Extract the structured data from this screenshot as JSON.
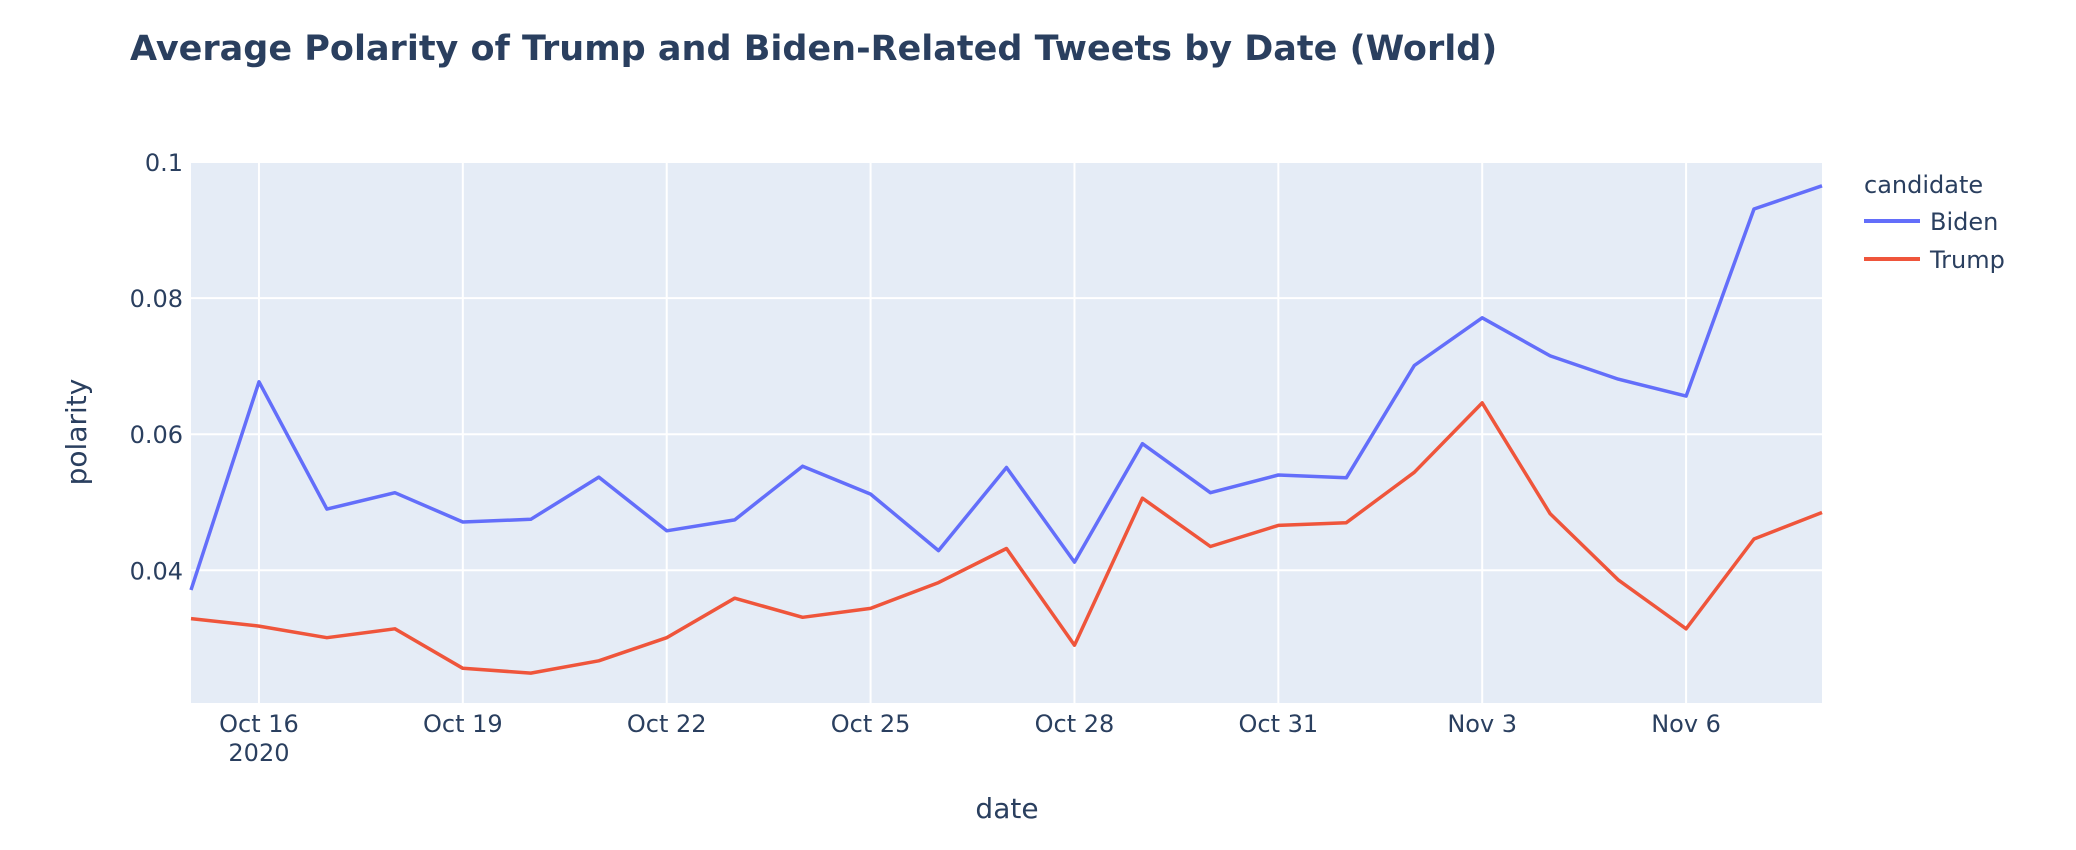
{
  "chart_data": {
    "type": "line",
    "title": "Average Polarity of Trump and Biden-Related Tweets by Date (World)",
    "xlabel": "date",
    "ylabel": "polarity",
    "legend_title": "candidate",
    "legend_position": "top-right",
    "grid": true,
    "x": [
      "2020-10-15",
      "2020-10-16",
      "2020-10-17",
      "2020-10-18",
      "2020-10-19",
      "2020-10-20",
      "2020-10-21",
      "2020-10-22",
      "2020-10-23",
      "2020-10-24",
      "2020-10-25",
      "2020-10-26",
      "2020-10-27",
      "2020-10-28",
      "2020-10-29",
      "2020-10-30",
      "2020-10-31",
      "2020-11-01",
      "2020-11-02",
      "2020-11-03",
      "2020-11-04",
      "2020-11-05",
      "2020-11-06",
      "2020-11-07",
      "2020-11-08"
    ],
    "x_ticks": [
      {
        "date": "2020-10-16",
        "label": "Oct 16",
        "sublabel": "2020"
      },
      {
        "date": "2020-10-19",
        "label": "Oct 19",
        "sublabel": ""
      },
      {
        "date": "2020-10-22",
        "label": "Oct 22",
        "sublabel": ""
      },
      {
        "date": "2020-10-25",
        "label": "Oct 25",
        "sublabel": ""
      },
      {
        "date": "2020-10-28",
        "label": "Oct 28",
        "sublabel": ""
      },
      {
        "date": "2020-10-31",
        "label": "Oct 31",
        "sublabel": ""
      },
      {
        "date": "2020-11-03",
        "label": "Nov 3",
        "sublabel": ""
      },
      {
        "date": "2020-11-06",
        "label": "Nov 6",
        "sublabel": ""
      }
    ],
    "ylim": [
      0.0205,
      0.1
    ],
    "y_ticks": [
      {
        "value": 0.04,
        "label": "0.04"
      },
      {
        "value": 0.06,
        "label": "0.06"
      },
      {
        "value": 0.08,
        "label": "0.08"
      },
      {
        "value": 0.1,
        "label": "0.1"
      }
    ],
    "series": [
      {
        "name": "Biden",
        "color": "#636efa",
        "values": [
          0.0371,
          0.0677,
          0.049,
          0.0514,
          0.0471,
          0.0475,
          0.0537,
          0.0458,
          0.0474,
          0.0553,
          0.0512,
          0.0429,
          0.0551,
          0.0412,
          0.0586,
          0.0514,
          0.054,
          0.0536,
          0.0701,
          0.0771,
          0.0715,
          0.0681,
          0.0656,
          0.0931,
          0.0965
        ]
      },
      {
        "name": "Trump",
        "color": "#ef553b",
        "values": [
          0.0329,
          0.0318,
          0.0301,
          0.0314,
          0.0256,
          0.0249,
          0.0267,
          0.0301,
          0.0359,
          0.0331,
          0.0344,
          0.0382,
          0.0432,
          0.029,
          0.0506,
          0.0435,
          0.0466,
          0.047,
          0.0544,
          0.0646,
          0.0483,
          0.0386,
          0.0314,
          0.0446,
          0.0485
        ]
      }
    ]
  }
}
